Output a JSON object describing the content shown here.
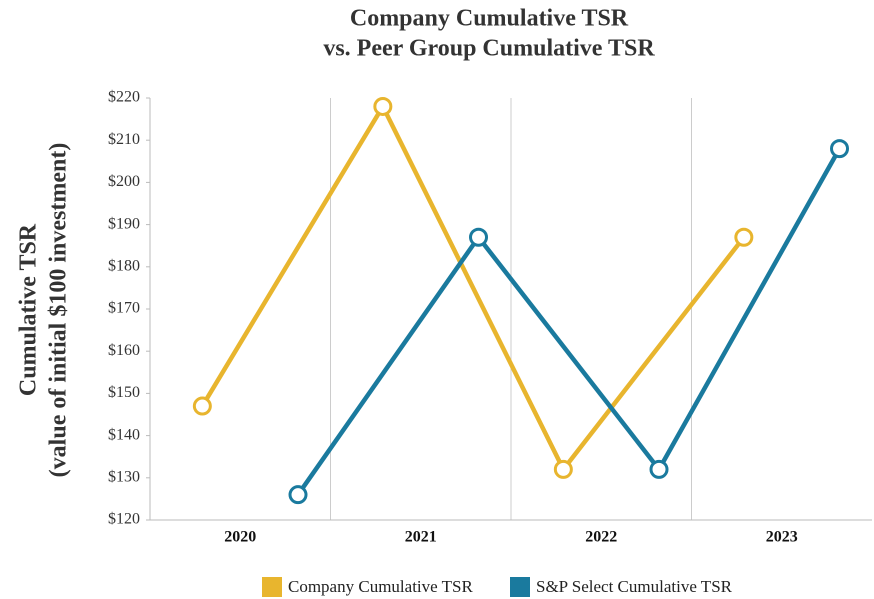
{
  "chart_data": {
    "type": "line",
    "title": [
      "Company Cumulative TSR",
      "vs. Peer Group Cumulative TSR"
    ],
    "y_label": [
      "Cumulative TSR",
      "(value of initial $100 investment)"
    ],
    "categories": [
      "2020",
      "2021",
      "2022",
      "2023"
    ],
    "series": [
      {
        "name": "Company Cumulative TSR",
        "color": "#E8B52E",
        "values": [
          147,
          218,
          132,
          187
        ]
      },
      {
        "name": "S&P Select Cumulative TSR",
        "color": "#1A7A9E",
        "values": [
          126,
          187,
          132,
          208
        ]
      }
    ],
    "ylim": [
      120,
      220
    ],
    "yticks": [
      {
        "value": 120,
        "label": "$120"
      },
      {
        "value": 130,
        "label": "$130"
      },
      {
        "value": 140,
        "label": "$140"
      },
      {
        "value": 150,
        "label": "$150"
      },
      {
        "value": 160,
        "label": "$160"
      },
      {
        "value": 170,
        "label": "$170"
      },
      {
        "value": 180,
        "label": "$180"
      },
      {
        "value": 190,
        "label": "$190"
      },
      {
        "value": 200,
        "label": "$200"
      },
      {
        "value": 210,
        "label": "$210"
      },
      {
        "value": 220,
        "label": "$220"
      }
    ],
    "legend": "bottom"
  }
}
